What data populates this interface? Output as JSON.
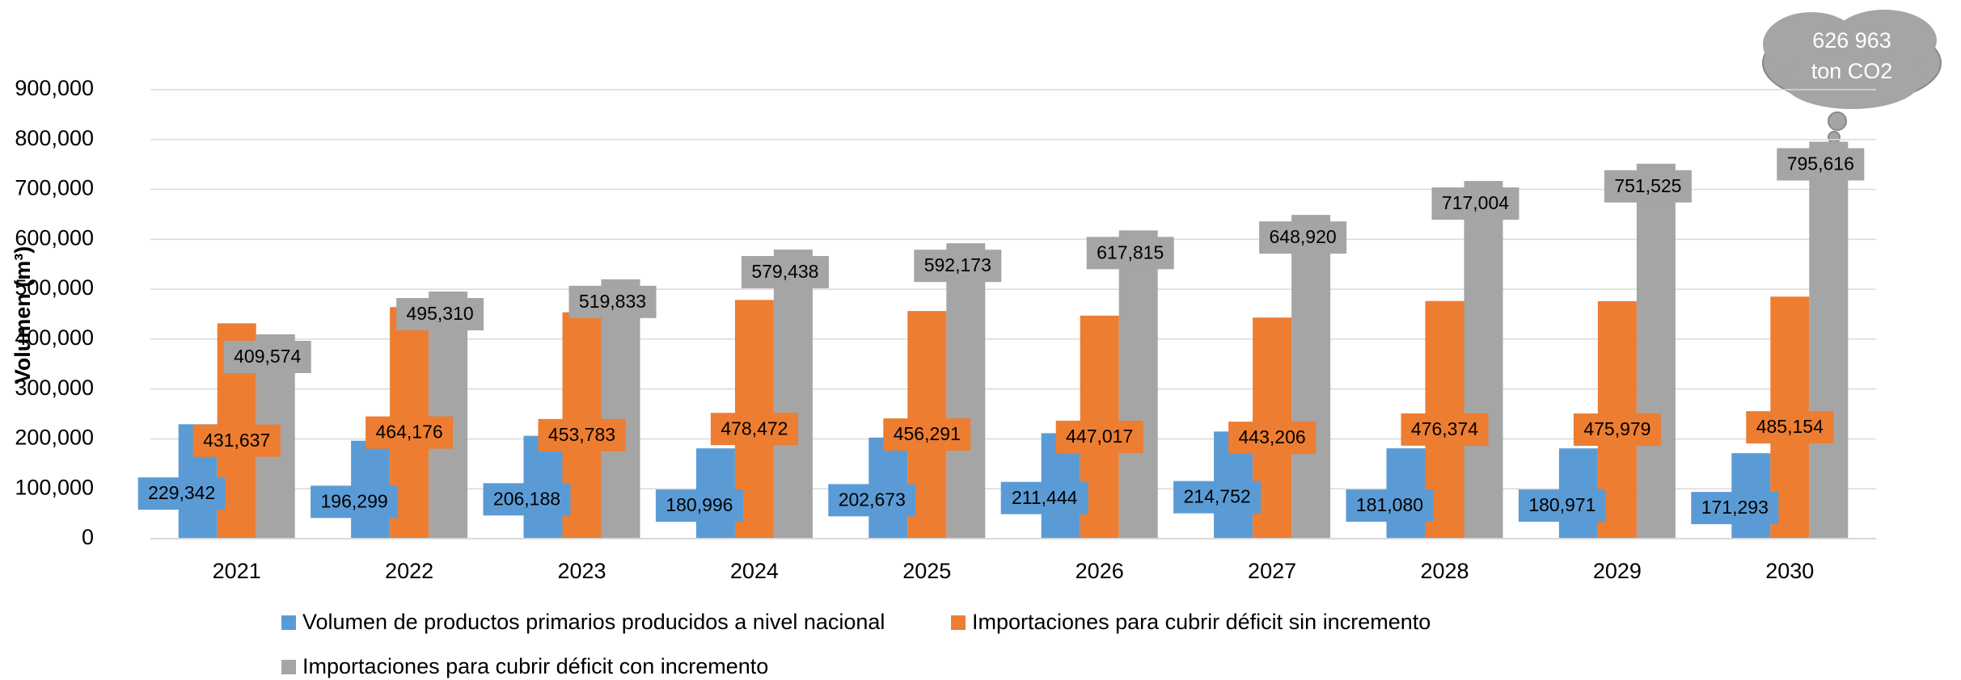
{
  "chart_data": {
    "type": "bar",
    "y_label": "Volumen (m³)",
    "categories": [
      "2021",
      "2022",
      "2023",
      "2024",
      "2025",
      "2026",
      "2027",
      "2028",
      "2029",
      "2030"
    ],
    "series": [
      {
        "name": "Volumen de productos primarios producidos a nivel nacional",
        "color": "#5b9bd5",
        "values": [
          229342,
          196299,
          206188,
          180996,
          202673,
          211444,
          214752,
          181080,
          180971,
          171293
        ],
        "value_labels": [
          "229,342",
          "196,299",
          "206,188",
          "180,996",
          "202,673",
          "211,444",
          "214,752",
          "181,080",
          "180,971",
          "171,293"
        ]
      },
      {
        "name": "Importaciones para cubrir déficit sin incremento",
        "color": "#ed7d31",
        "values": [
          431637,
          464176,
          453783,
          478472,
          456291,
          447017,
          443206,
          476374,
          475979,
          485154
        ],
        "value_labels": [
          "431,637",
          "464,176",
          "453,783",
          "478,472",
          "456,291",
          "447,017",
          "443,206",
          "476,374",
          "475,979",
          "485,154"
        ]
      },
      {
        "name": "Importaciones para cubrir déficit con incremento",
        "color": "#a5a5a5",
        "values": [
          409574,
          495310,
          519833,
          579438,
          592173,
          617815,
          648920,
          717004,
          751525,
          795616
        ],
        "value_labels": [
          "409,574",
          "495,310",
          "519,833",
          "579,438",
          "592,173",
          "617,815",
          "648,920",
          "717,004",
          "751,525",
          "795,616"
        ]
      }
    ],
    "ylim": [
      0,
      900000
    ],
    "yticks": [
      0,
      {
        "value": 100000,
        "label": "100,000"
      },
      {
        "value": 200000,
        "label": "200,000"
      },
      {
        "value": 300000,
        "label": "300,000"
      },
      {
        "value": 400000,
        "label": "400,000"
      },
      {
        "value": 500000,
        "label": "500,000"
      },
      {
        "value": 600000,
        "label": "600,000"
      },
      {
        "value": 700000,
        "label": "700,000"
      },
      {
        "value": 800000,
        "label": "800,000"
      },
      {
        "value": 900000,
        "label": "900,000"
      }
    ],
    "grid": true,
    "legend": "bottom",
    "annotation": [
      "626 963",
      "ton CO2"
    ]
  }
}
